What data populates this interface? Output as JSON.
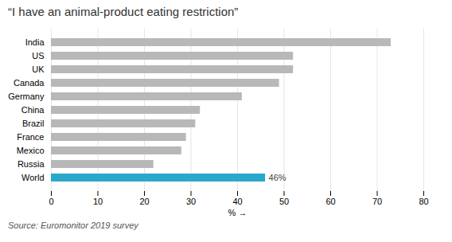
{
  "chart_data": {
    "type": "bar",
    "orientation": "horizontal",
    "title": "“I have an animal-product eating restriction”",
    "categories": [
      "India",
      "US",
      "UK",
      "Canada",
      "Germany",
      "China",
      "Brazil",
      "France",
      "Mexico",
      "Russia",
      "World"
    ],
    "values": [
      73,
      52,
      52,
      49,
      41,
      32,
      31,
      29,
      28,
      22,
      46
    ],
    "colors": [
      "#b8b8b8",
      "#b8b8b8",
      "#b8b8b8",
      "#b8b8b8",
      "#b8b8b8",
      "#b8b8b8",
      "#b8b8b8",
      "#b8b8b8",
      "#b8b8b8",
      "#b8b8b8",
      "#29a8cc"
    ],
    "annotations": [
      {
        "text": "46%",
        "category": "World",
        "value": 46
      }
    ],
    "xlabel": "%",
    "xlim": [
      0,
      80
    ],
    "xticks": [
      0,
      10,
      20,
      30,
      40,
      50,
      60,
      70,
      80
    ],
    "grid": true,
    "source": "Source: Euromonitor 2019 survey"
  }
}
